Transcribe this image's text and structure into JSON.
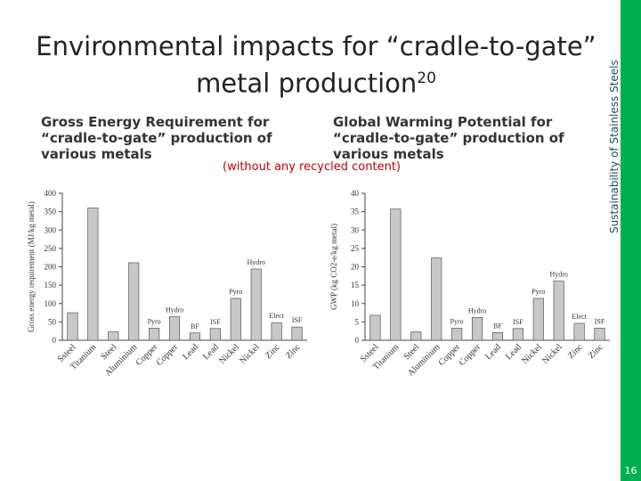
{
  "slide": {
    "title_line1": "Environmental impacts for “cradle-to-gate”",
    "title_line2": "metal production",
    "title_ref": "20",
    "note": "(without any recycled content)",
    "side_text": "Sustainability of Stainless Steels",
    "page_number": "16"
  },
  "chart_data": [
    {
      "type": "bar",
      "title": "Gross Energy Requirement for “cradle-to-gate” production of various metals",
      "y_label": "Gross energy requirement (MJ/kg metal)",
      "categories": [
        "Ssteel",
        "Titanium",
        "Steel",
        "Aluminium",
        "Copper",
        "Copper",
        "Lead",
        "Lead",
        "Nickel",
        "Nickel",
        "Zinc",
        "Zinc"
      ],
      "bar_labels": [
        null,
        null,
        null,
        null,
        "Pyro",
        "Hydro",
        "BF",
        "ISF",
        "Pyro",
        "Hydro",
        "Elect",
        "ISF"
      ],
      "values": [
        75,
        360,
        23,
        211,
        33,
        64,
        20,
        32,
        114,
        194,
        48,
        36
      ],
      "color": "#c8c8c8",
      "ylim": [
        0,
        400
      ],
      "yticks": [
        0,
        50,
        100,
        150,
        200,
        250,
        300,
        350,
        400
      ]
    },
    {
      "type": "bar",
      "title": "Global Warming Potential for “cradle-to-gate” production of various metals",
      "y_label": "GWP (kg CO2-e/kg metal)",
      "categories": [
        "Ssteel",
        "Titanium",
        "Steel",
        "Aluminium",
        "Copper",
        "Copper",
        "Lead",
        "Lead",
        "Nickel",
        "Nickel",
        "Zinc",
        "Zinc"
      ],
      "bar_labels": [
        null,
        null,
        null,
        null,
        "Pyro",
        "Hydro",
        "BF",
        "ISF",
        "Pyro",
        "Hydro",
        "Elect",
        "ISF"
      ],
      "values": [
        6.8,
        35.7,
        2.3,
        22.4,
        3.3,
        6.2,
        2.1,
        3.2,
        11.4,
        16.1,
        4.6,
        3.3
      ],
      "color": "#c8c8c8",
      "ylim": [
        0,
        40
      ],
      "yticks": [
        0,
        5,
        10,
        15,
        20,
        25,
        30,
        35,
        40
      ]
    }
  ]
}
